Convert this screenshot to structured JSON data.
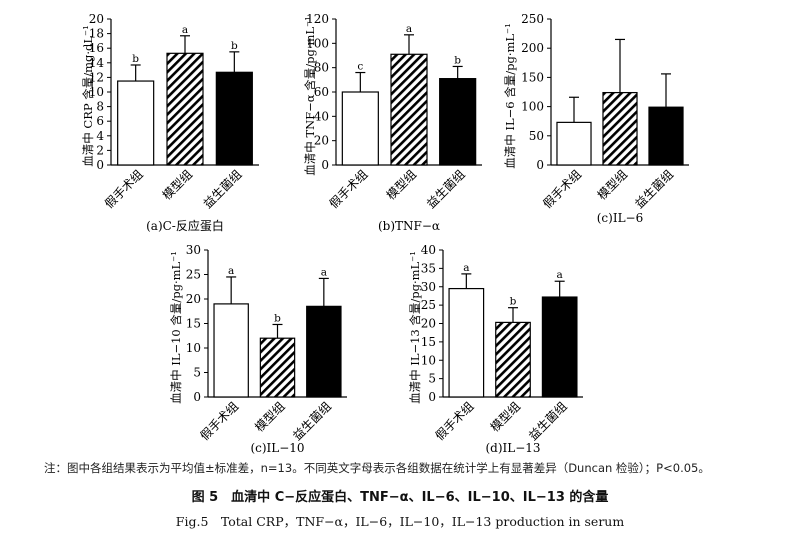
{
  "colors": {
    "hatch": "#000000",
    "solid": "#000000",
    "open": "#ffffff"
  },
  "chart_data": [
    {
      "id": "a",
      "type": "bar",
      "caption": "(a)C-反应蛋白",
      "ylabel": "血清中 CRP 含量/mg·dL⁻¹",
      "categories": [
        "假手术组",
        "模型组",
        "益生菌组"
      ],
      "values": [
        11.5,
        15.3,
        12.7
      ],
      "errors": [
        2.2,
        2.4,
        2.8
      ],
      "letters": [
        "b",
        "a",
        "b"
      ],
      "fills": [
        "open",
        "hatch",
        "solid"
      ],
      "ylim": [
        0,
        20
      ],
      "yticks": [
        "0",
        "2",
        "4",
        "6",
        "8",
        "10",
        "12",
        "14",
        "16",
        "18",
        "20"
      ]
    },
    {
      "id": "b",
      "type": "bar",
      "caption": "(b)TNF−α",
      "ylabel": "血清中 TNF−α 含量/pg·mL⁻¹",
      "categories": [
        "假手术组",
        "模型组",
        "益生菌组"
      ],
      "values": [
        60,
        91,
        71
      ],
      "errors": [
        16,
        16,
        10
      ],
      "letters": [
        "c",
        "a",
        "b"
      ],
      "fills": [
        "open",
        "hatch",
        "solid"
      ],
      "ylim": [
        0,
        120
      ],
      "yticks": [
        "0",
        "20",
        "40",
        "60",
        "80",
        "100",
        "120"
      ]
    },
    {
      "id": "c",
      "type": "bar",
      "caption": "(c)IL−6",
      "ylabel": "血清中 IL−6 含量/pg·mL⁻¹",
      "categories": [
        "假手术组",
        "模型组",
        "益生菌组"
      ],
      "values": [
        73,
        124,
        99
      ],
      "errors": [
        43,
        91,
        57
      ],
      "letters": [
        "",
        "",
        ""
      ],
      "fills": [
        "open",
        "hatch",
        "solid"
      ],
      "ylim": [
        0,
        250
      ],
      "yticks": [
        "0",
        "50",
        "100",
        "150",
        "200",
        "250"
      ]
    },
    {
      "id": "d",
      "type": "bar",
      "caption": "(c)IL−10",
      "ylabel": "血清中 IL−10 含量/pg·mL⁻¹",
      "categories": [
        "假手术组",
        "模型组",
        "益生菌组"
      ],
      "values": [
        19,
        12,
        18.5
      ],
      "errors": [
        5.5,
        2.8,
        5.7
      ],
      "letters": [
        "a",
        "b",
        "a"
      ],
      "fills": [
        "open",
        "hatch",
        "solid"
      ],
      "ylim": [
        0,
        30
      ],
      "yticks": [
        "0",
        "5",
        "10",
        "15",
        "20",
        "25",
        "30"
      ]
    },
    {
      "id": "e",
      "type": "bar",
      "caption": "(d)IL−13",
      "ylabel": "血清中 IL−13 含量/pg·mL⁻¹",
      "categories": [
        "假手术组",
        "模型组",
        "益生菌组"
      ],
      "values": [
        29.5,
        20.3,
        27.2
      ],
      "errors": [
        4,
        4,
        4.3
      ],
      "letters": [
        "a",
        "b",
        "a"
      ],
      "fills": [
        "open",
        "hatch",
        "solid"
      ],
      "ylim": [
        0,
        40
      ],
      "yticks": [
        "0",
        "5",
        "10",
        "15",
        "20",
        "25",
        "30",
        "35",
        "40"
      ]
    }
  ],
  "note": "注：图中各组结果表示为平均值±标准差，n=13。不同英文字母表示各组数据在统计学上有显著差异（Duncan 检验）；P<0.05。",
  "caption_cn": "图 5　血清中 C−反应蛋白、TNF−α、IL−6、IL−10、IL−13 的含量",
  "caption_en": "Fig.5　Total CRP，TNF−α，IL−6，IL−10，IL−13 production in serum"
}
